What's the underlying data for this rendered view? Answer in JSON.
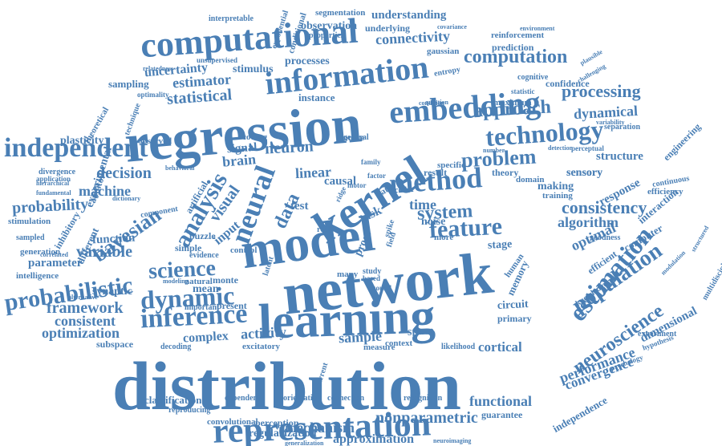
{
  "colors": {
    "word": "#4a7fb5",
    "background": "#ffffff"
  },
  "words": [
    "distribution",
    "network",
    "learning",
    "model",
    "kernel",
    "regression",
    "representation",
    "computational",
    "information",
    "embedding",
    "independent",
    "method",
    "technology",
    "computation",
    "feature",
    "estimation",
    "neural",
    "analysis",
    "inference",
    "dynamic",
    "science",
    "probabilistic",
    "bayesian",
    "population",
    "neuroscience",
    "approach",
    "problem",
    "system",
    "processing",
    "consistency",
    "algorithm",
    "performance",
    "convergence",
    "dimensional",
    "functional",
    "nonparametric",
    "mechanism",
    "approximation",
    "framework",
    "consistent",
    "optimization",
    "variable",
    "probability",
    "decision",
    "machine",
    "statistical",
    "estimator",
    "uncertainty",
    "connectivity",
    "understanding",
    "observation",
    "segmentation",
    "prediction",
    "reinforcement",
    "confidence",
    "dynamical",
    "structure",
    "response",
    "interaction",
    "efficiency",
    "sensory",
    "neuron",
    "brain",
    "visual",
    "signal",
    "linear",
    "data",
    "time",
    "task",
    "test",
    "sample",
    "space",
    "activity",
    "complex",
    "cortical",
    "memory",
    "optimal",
    "stage",
    "primary",
    "circuit",
    "human",
    "computer",
    "classification",
    "regularization",
    "perception",
    "convolutional",
    "reproducing",
    "dependent",
    "orientation",
    "connection",
    "recognition",
    "guarantee",
    "generalization",
    "neuroimaging",
    "subspace",
    "decoding",
    "excitatory",
    "recurrent",
    "measure",
    "context",
    "likelihood",
    "plasticity",
    "theory",
    "result",
    "domain",
    "sensory",
    "making",
    "training",
    "experimental",
    "experiment",
    "function",
    "parameter",
    "generation",
    "intelligence",
    "synaptic",
    "alternative",
    "mean",
    "simple",
    "input",
    "monte",
    "natural",
    "modeling",
    "present",
    "important",
    "puzzle",
    "observed",
    "stimulus",
    "processes",
    "unsupervised",
    "interpretable",
    "exponential",
    "conditional",
    "underlying",
    "properties",
    "covariance",
    "gaussian",
    "environment",
    "sampling",
    "instance",
    "causal",
    "source",
    "noise",
    "more",
    "proof",
    "many",
    "real",
    "rate",
    "code",
    "theoretical",
    "technique",
    "auditory",
    "divergence",
    "fundamental",
    "stimulation",
    "inhibitory",
    "sampled",
    "different",
    "correlated",
    "multidisciplinary",
    "hypothesis",
    "psychology",
    "independence",
    "engineering",
    "continuous",
    "structured",
    "modulation",
    "goodness",
    "efficient",
    "knowledge",
    "variability",
    "separation",
    "detection",
    "perceptual",
    "number",
    "maximum",
    "statistic",
    "question",
    "condition",
    "cognitive",
    "challenging",
    "plausible",
    "memory",
    "hierarchical",
    "application",
    "relatedness",
    "optimality",
    "coding",
    "general",
    "specific",
    "family",
    "factor",
    "motor",
    "ridge",
    "field",
    "spike",
    "study",
    "sound",
    "based",
    "latent",
    "control",
    "evidence",
    "component",
    "artificial",
    "behavioral",
    "dictionary",
    "entropy"
  ]
}
